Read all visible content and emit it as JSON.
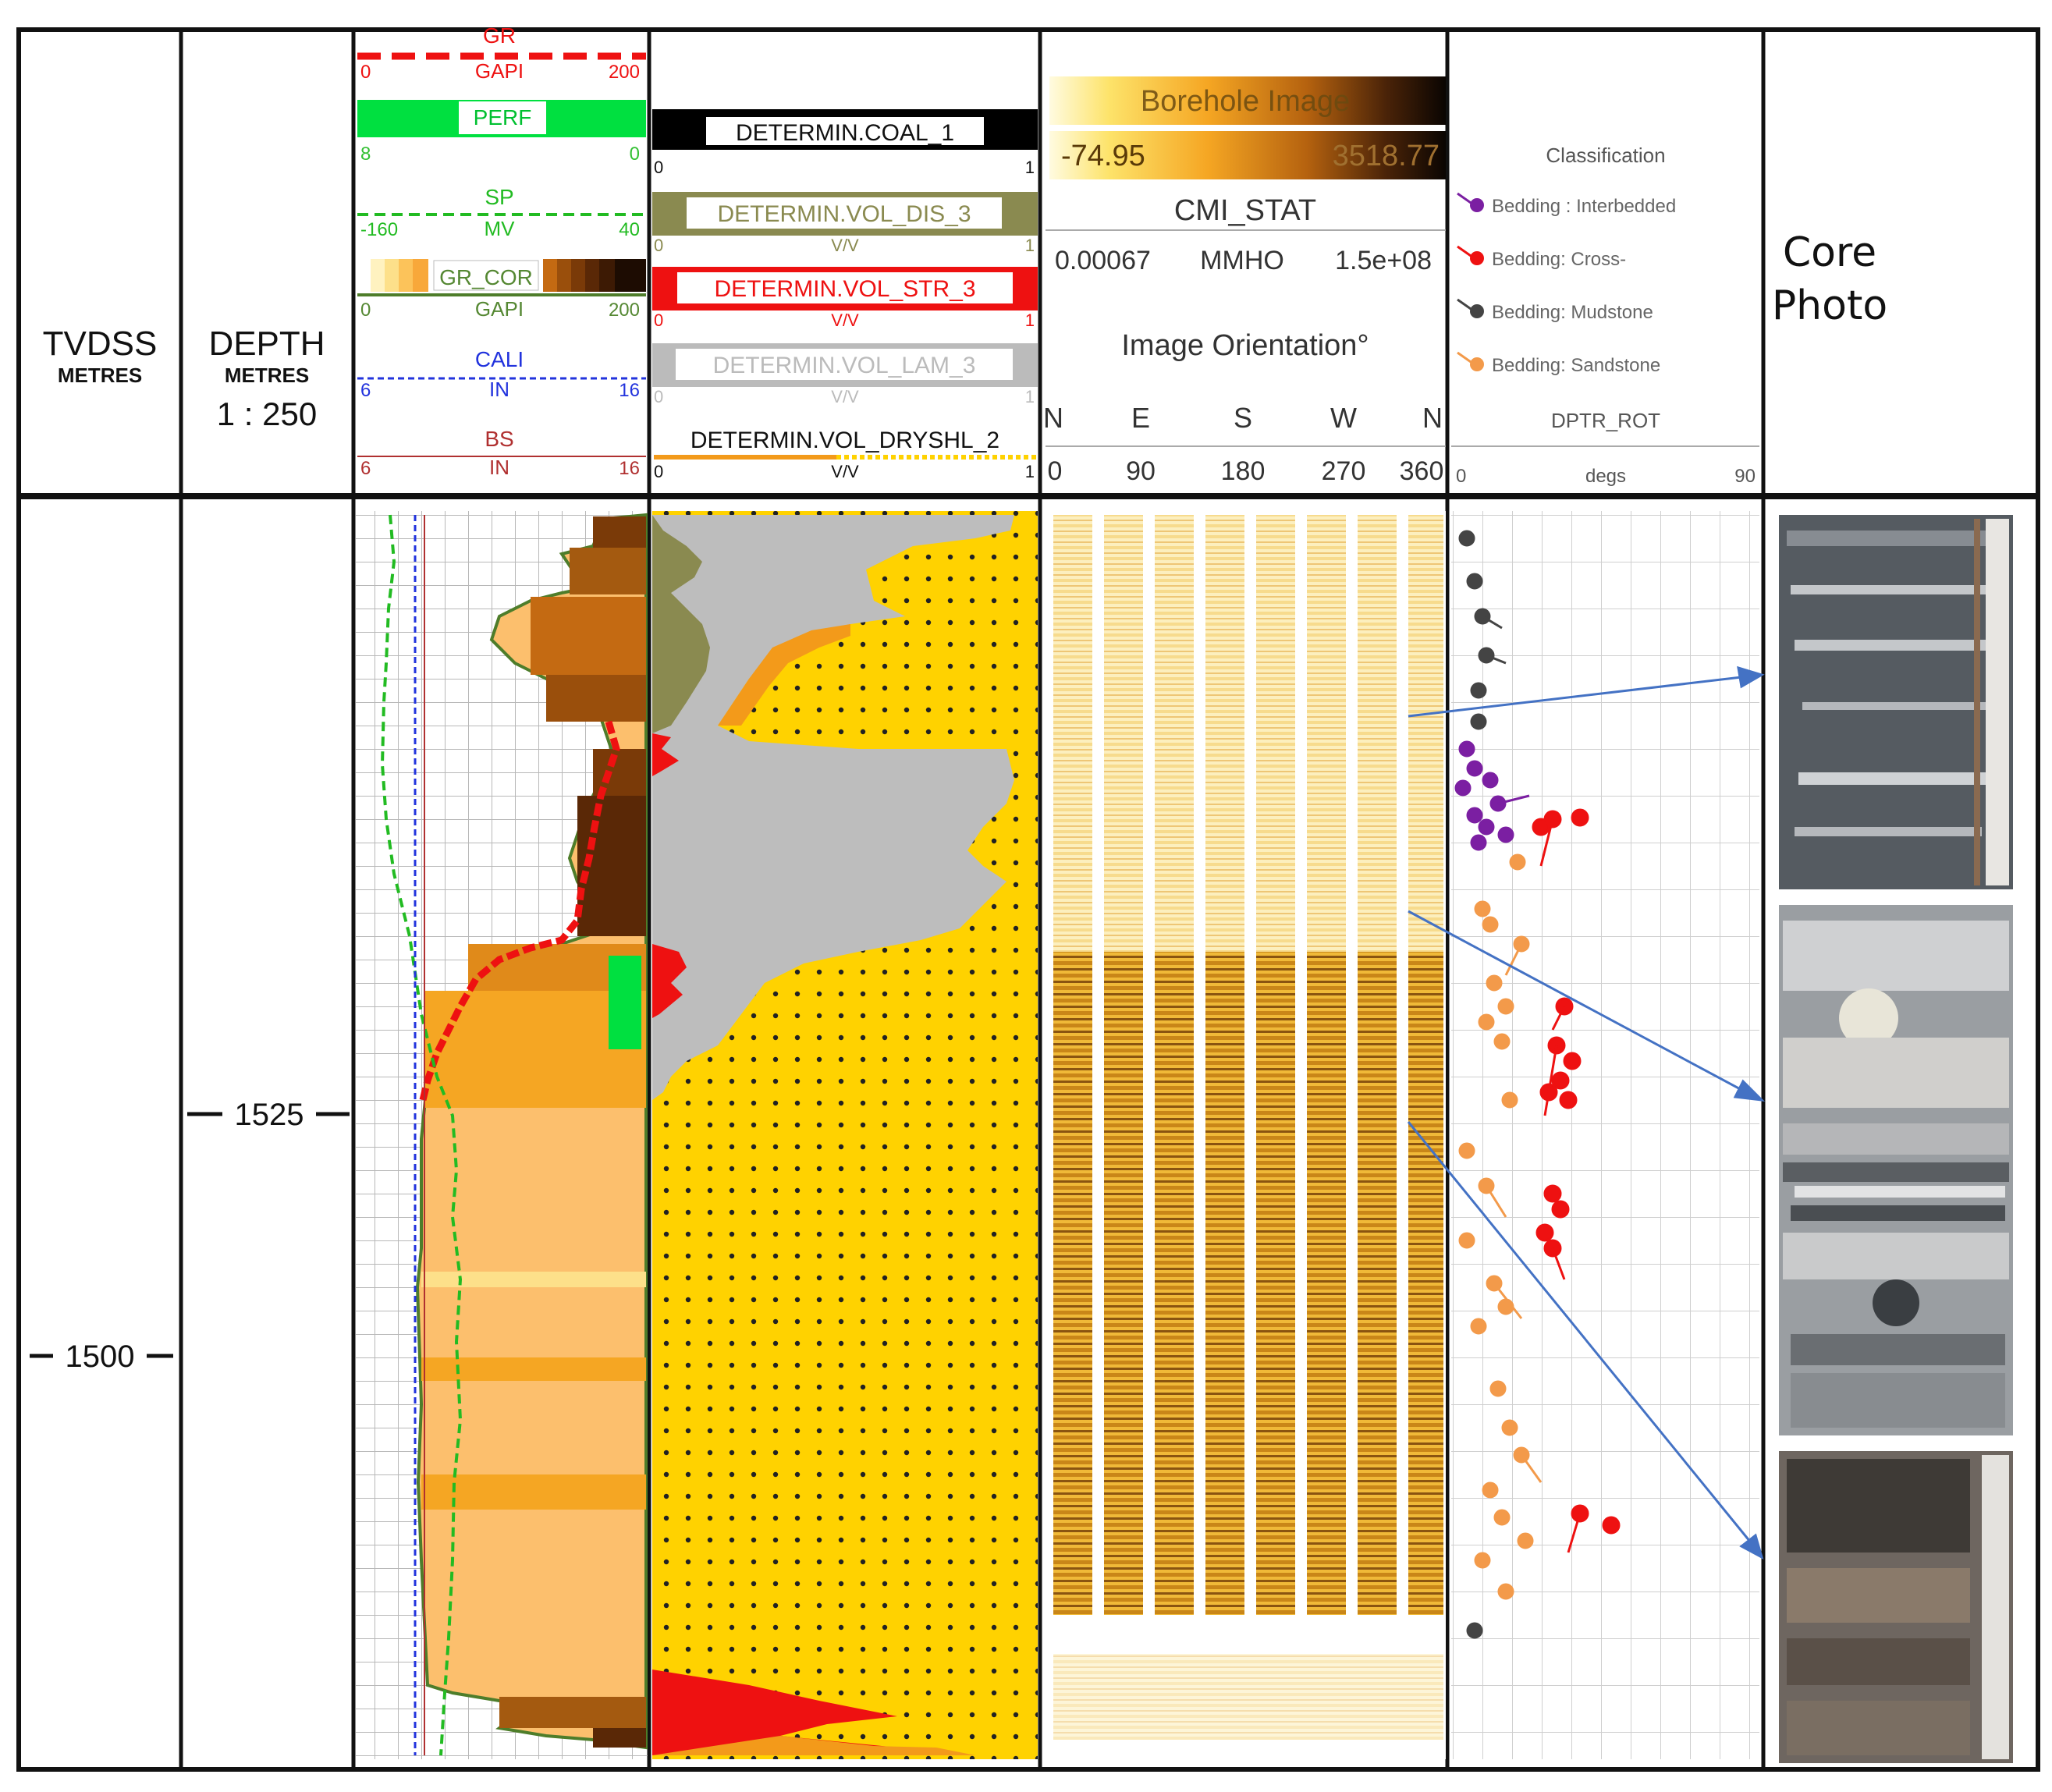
{
  "tracks": {
    "tvdss": {
      "label": "TVDSS",
      "unit": "METRES",
      "marker": "1500"
    },
    "depth": {
      "label": "DEPTH",
      "unit": "METRES",
      "scale": "1 : 250",
      "marker": "1525"
    },
    "gr": {
      "label": "GR",
      "unit": "GAPI",
      "min": "0",
      "max": "200",
      "color": "#ee1111"
    },
    "perf": {
      "label": "PERF",
      "min": "8",
      "max": "0",
      "color": "#00e040"
    },
    "sp": {
      "label": "SP",
      "unit": "MV",
      "min": "-160",
      "max": "40",
      "color": "#22bb22"
    },
    "gr_cor": {
      "label": "GR_COR",
      "unit": "GAPI",
      "min": "0",
      "max": "200"
    },
    "cali": {
      "label": "CALI",
      "unit": "IN",
      "min": "6",
      "max": "16",
      "color": "#2233dd"
    },
    "bs": {
      "label": "BS",
      "unit": "IN",
      "min": "6",
      "max": "16",
      "color": "#b03030"
    },
    "coal": {
      "label": "DETERMIN.COAL_1",
      "min": "0",
      "max": "1"
    },
    "dis": {
      "label": "DETERMIN.VOL_DIS_3",
      "unit": "V/V",
      "min": "0",
      "max": "1",
      "color": "#8a8a50"
    },
    "str": {
      "label": "DETERMIN.VOL_STR_3",
      "unit": "V/V",
      "min": "0",
      "max": "1",
      "color": "#ee1111"
    },
    "lam": {
      "label": "DETERMIN.VOL_LAM_3",
      "unit": "V/V",
      "min": "0",
      "max": "1",
      "color": "#bbbbbb"
    },
    "dryshl": {
      "label": "DETERMIN.VOL_DRYSHL_2",
      "unit": "V/V",
      "min": "0",
      "max": "1"
    },
    "image": {
      "label": "Borehole Image",
      "min": "-74.95",
      "max": "3518.77",
      "stat": "CMI_STAT",
      "stat_min": "0.00067",
      "stat_unit": "MMHO",
      "stat_max": "1.5e+08",
      "orientation": "Image Orientation°",
      "dirs": [
        "N",
        "E",
        "S",
        "W",
        "N"
      ],
      "degs": [
        "0",
        "90",
        "180",
        "270",
        "360"
      ]
    },
    "dips": {
      "title": "Classification",
      "legend": [
        {
          "label": "Bedding : Interbedded",
          "color": "#7b1fa2"
        },
        {
          "label": "Bedding: Cross-",
          "color": "#ee1111"
        },
        {
          "label": "Bedding: Mudstone",
          "color": "#444444"
        },
        {
          "label": "Bedding: Sandstone",
          "color": "#f39a4a"
        }
      ],
      "curve": "DPTR_ROT",
      "unit": "degs",
      "min": "0",
      "max": "90"
    },
    "core": {
      "label_line1": "Core",
      "label_line2": "Photo"
    }
  }
}
